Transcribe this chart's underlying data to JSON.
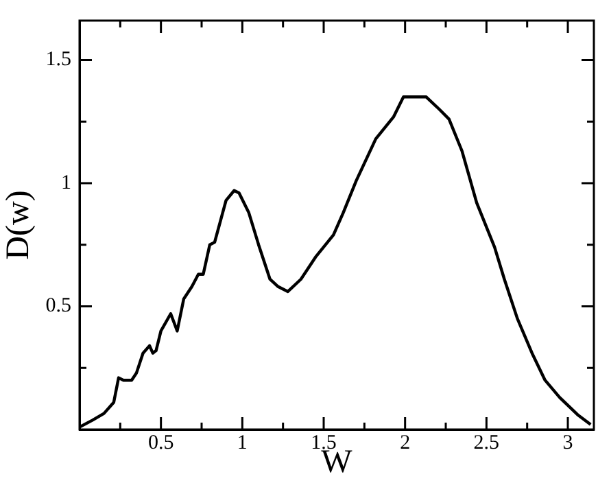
{
  "chart_data": {
    "type": "line",
    "xlabel": "W",
    "ylabel": "D(w)",
    "xlim": [
      0,
      3.16
    ],
    "ylim": [
      0,
      1.66
    ],
    "xticks": [
      {
        "value": 0.25,
        "label": null
      },
      0.5,
      {
        "value": 0.75,
        "label": null
      },
      1,
      {
        "value": 1.25,
        "label": null
      },
      1.5,
      {
        "value": 1.75,
        "label": null
      },
      2,
      {
        "value": 2.25,
        "label": null
      },
      2.5,
      {
        "value": 2.75,
        "label": null
      },
      3
    ],
    "yticks": [
      {
        "value": 0.25,
        "label": null
      },
      0.5,
      {
        "value": 0.75,
        "label": null
      },
      1,
      {
        "value": 1.25,
        "label": null
      },
      1.5
    ],
    "grid": false,
    "legend": false,
    "marker": "none",
    "line_style": "solid",
    "series": [
      {
        "color": "#000000",
        "x": [
          0.003,
          0.08,
          0.15,
          0.21,
          0.24,
          0.27,
          0.32,
          0.35,
          0.39,
          0.43,
          0.45,
          0.47,
          0.5,
          0.56,
          0.6,
          0.64,
          0.69,
          0.73,
          0.76,
          0.8,
          0.83,
          0.9,
          0.95,
          0.98,
          1.04,
          1.1,
          1.17,
          1.22,
          1.28,
          1.36,
          1.45,
          1.56,
          1.62,
          1.7,
          1.82,
          1.93,
          1.99,
          2.13,
          2.21,
          2.27,
          2.35,
          2.44,
          2.55,
          2.61,
          2.69,
          2.78,
          2.86,
          2.95,
          3.06,
          3.14
        ],
        "values": [
          0.011,
          0.038,
          0.065,
          0.11,
          0.21,
          0.2,
          0.2,
          0.23,
          0.31,
          0.34,
          0.31,
          0.32,
          0.4,
          0.47,
          0.4,
          0.53,
          0.58,
          0.63,
          0.63,
          0.75,
          0.76,
          0.93,
          0.97,
          0.96,
          0.88,
          0.75,
          0.61,
          0.58,
          0.56,
          0.61,
          0.7,
          0.79,
          0.88,
          1.01,
          1.18,
          1.27,
          1.35,
          1.35,
          1.3,
          1.26,
          1.13,
          0.92,
          0.74,
          0.61,
          0.45,
          0.31,
          0.2,
          0.13,
          0.06,
          0.02
        ]
      }
    ]
  }
}
